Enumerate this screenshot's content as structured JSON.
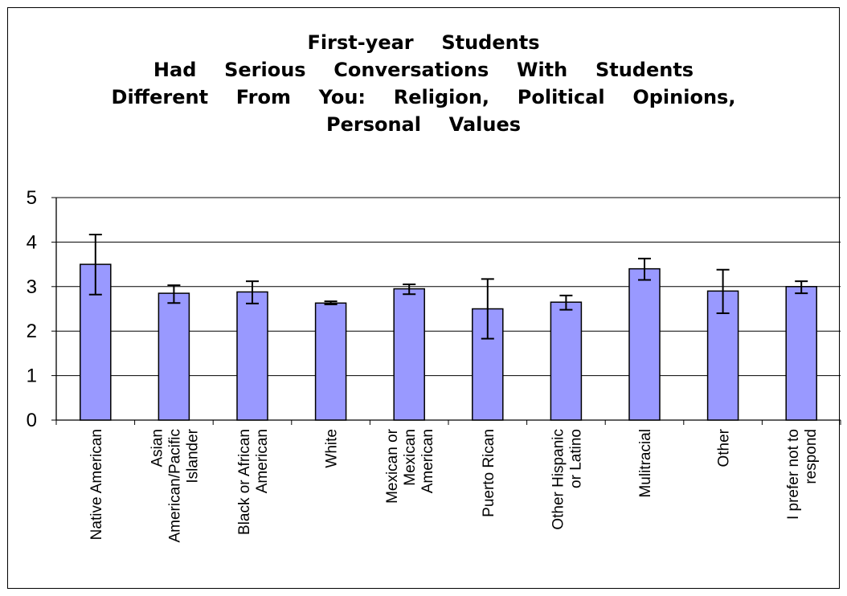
{
  "chart_data": {
    "type": "bar",
    "title_lines": [
      "First-year  Students",
      "Had  Serious  Conversations  With  Students",
      "Different  From  You:  Religion,  Political  Opinions,",
      "Personal  Values"
    ],
    "categories": [
      [
        "Native American"
      ],
      [
        "Asian",
        "American/Pacific",
        "Islander"
      ],
      [
        "Black or African",
        "American"
      ],
      [
        "White"
      ],
      [
        "Mexican or",
        "Mexican",
        "American"
      ],
      [
        "Puerto Rican"
      ],
      [
        "Other Hispanic",
        "or Latino"
      ],
      [
        "Mulitracial"
      ],
      [
        "Other"
      ],
      [
        "I prefer not to",
        "respond"
      ]
    ],
    "values": [
      3.5,
      2.85,
      2.88,
      2.63,
      2.95,
      2.5,
      2.65,
      3.4,
      2.9,
      3.0
    ],
    "error_low": [
      2.82,
      2.63,
      2.62,
      2.6,
      2.83,
      1.83,
      2.48,
      3.15,
      2.4,
      2.85
    ],
    "error_high": [
      4.17,
      3.03,
      3.12,
      2.67,
      3.05,
      3.17,
      2.8,
      3.63,
      3.38,
      3.12
    ],
    "yticks": [
      "0",
      "1",
      "2",
      "3",
      "4",
      "5"
    ],
    "ylim": [
      0,
      5
    ],
    "grid": true,
    "legend": "none",
    "bar_color": "#9999ff"
  }
}
